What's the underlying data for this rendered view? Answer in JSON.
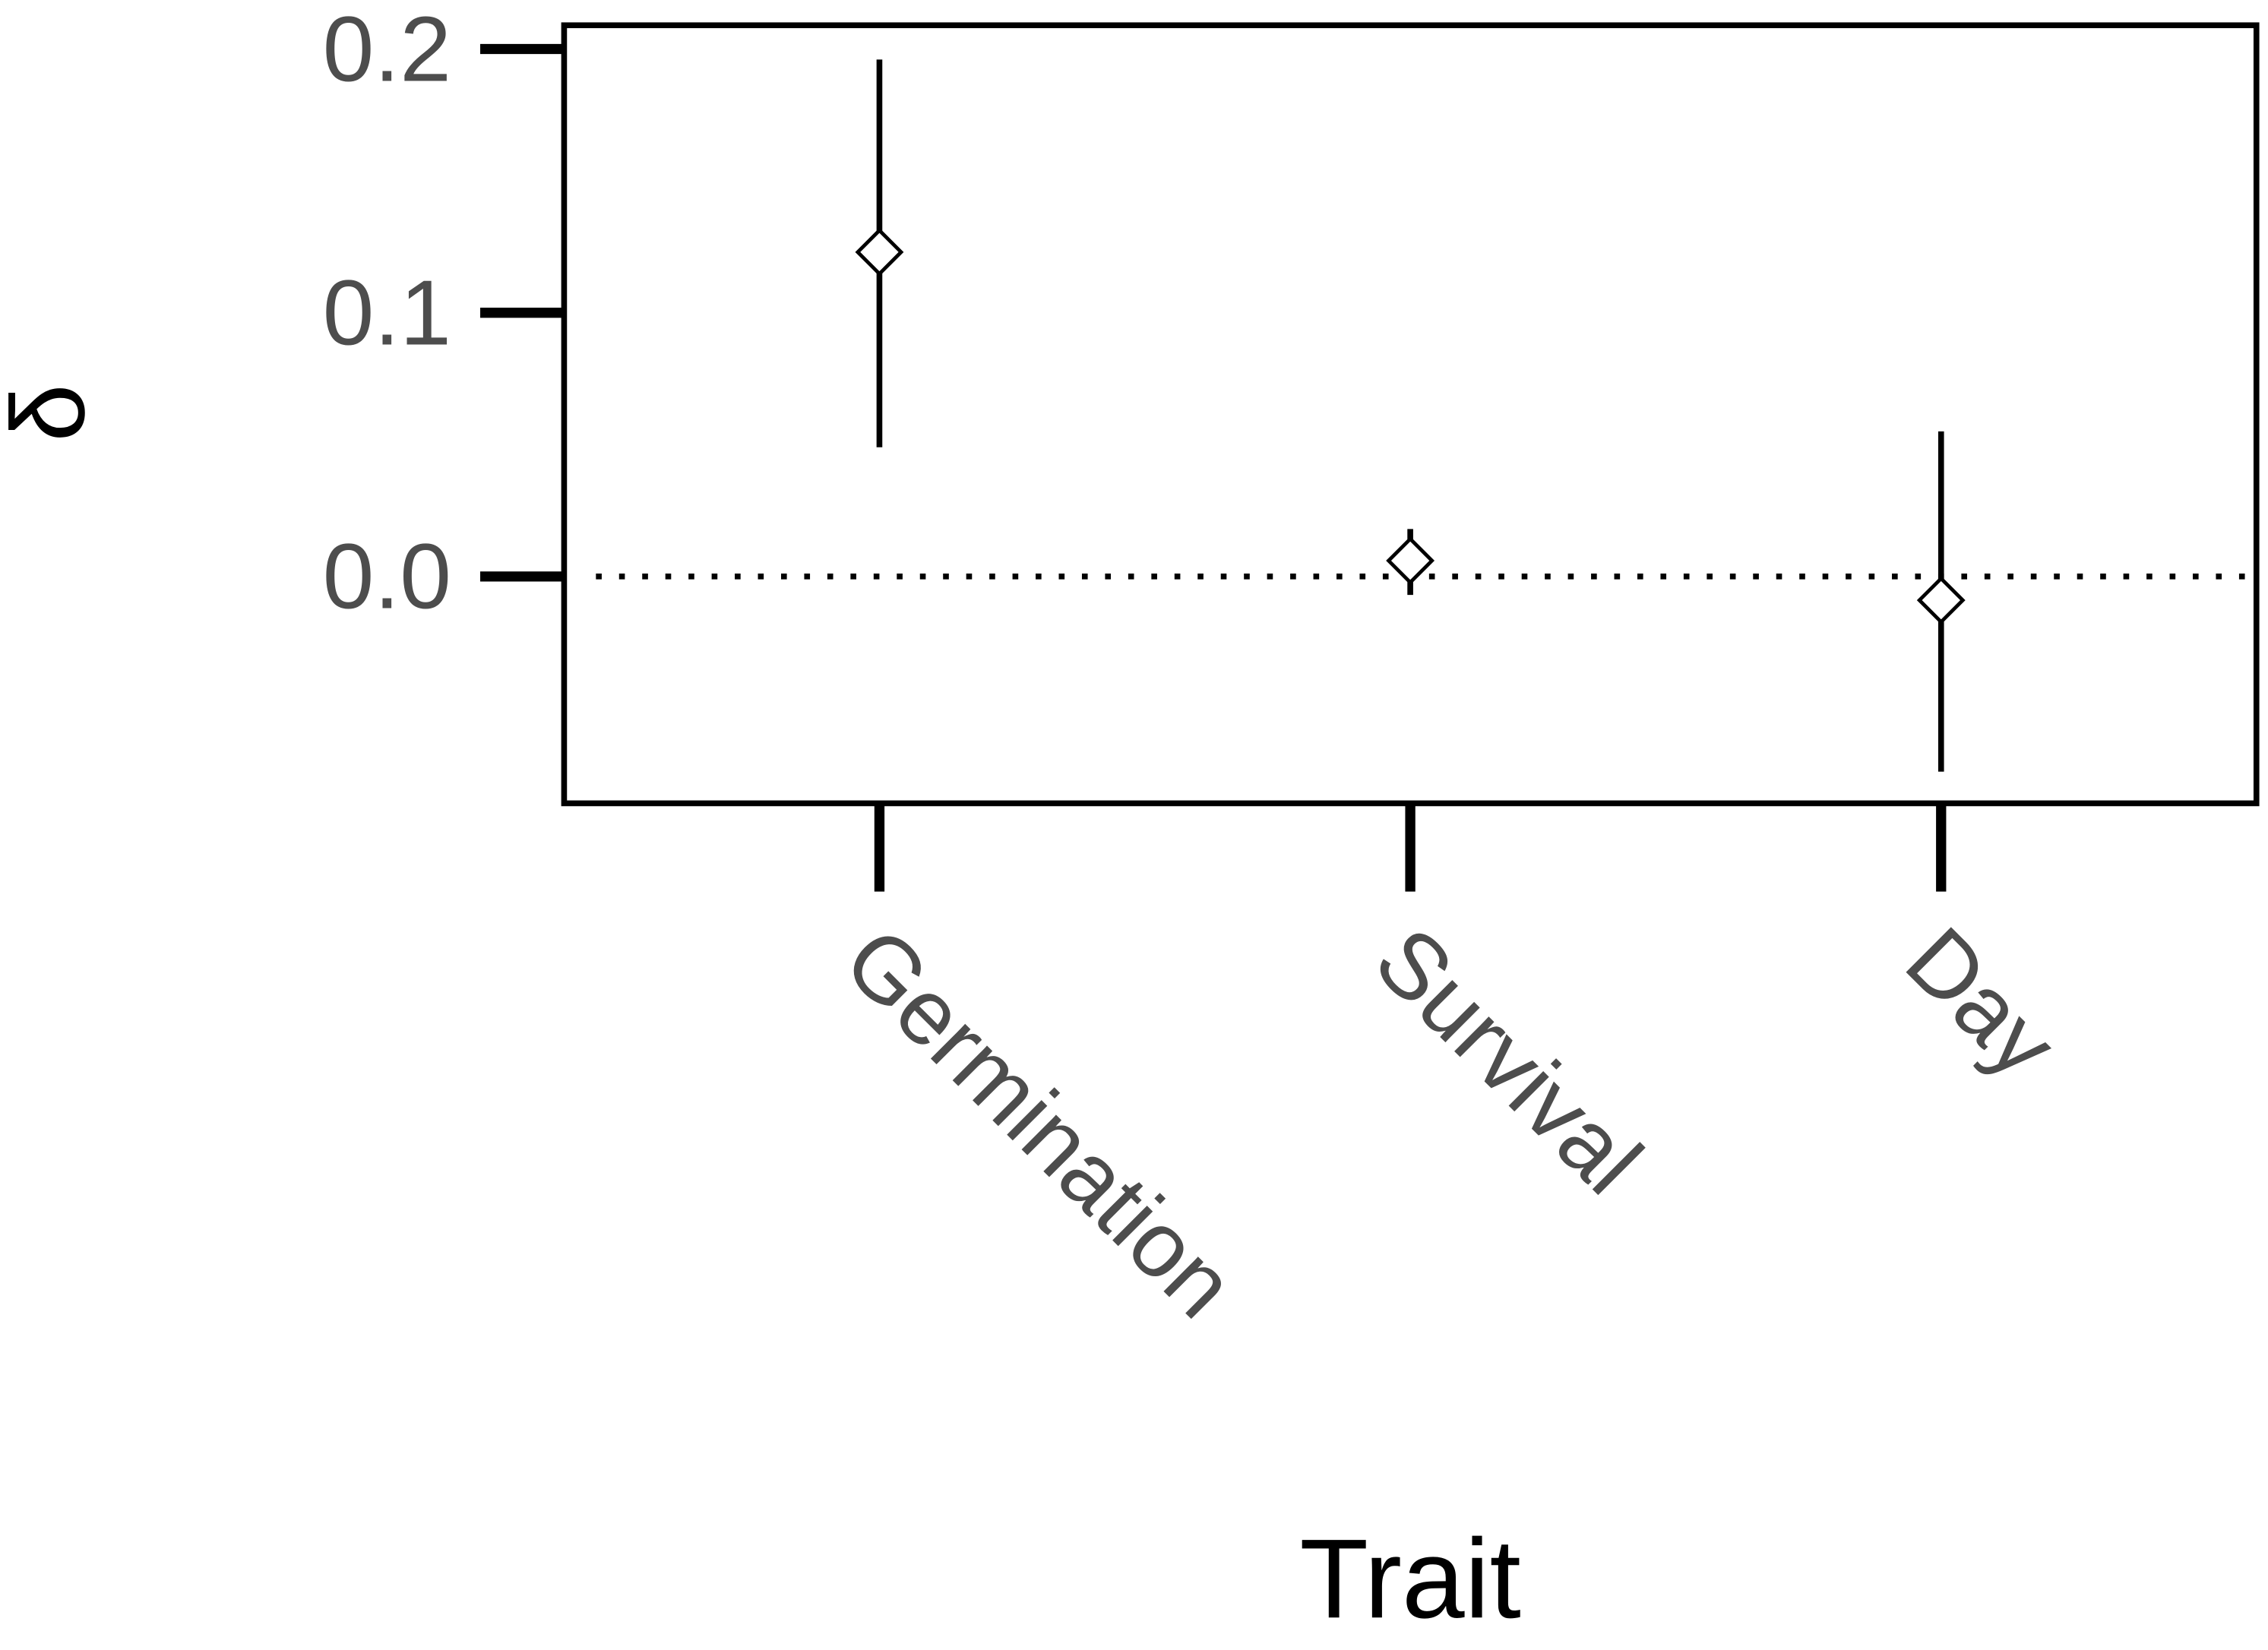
{
  "chart_data": {
    "type": "pointrange",
    "x_label": "Trait",
    "y_label": "δ",
    "categories": [
      "Germination",
      "Survival",
      "Day"
    ],
    "values": [
      0.123,
      0.006,
      -0.009
    ],
    "lower": [
      0.049,
      -0.007,
      -0.074
    ],
    "upper": [
      0.196,
      0.018,
      0.055
    ],
    "ylim": [
      -0.086,
      0.209
    ],
    "yticks": [
      {
        "value": 0,
        "label": "0.0"
      },
      0.1,
      0.2
    ],
    "hline": 0,
    "color": "#000000"
  }
}
